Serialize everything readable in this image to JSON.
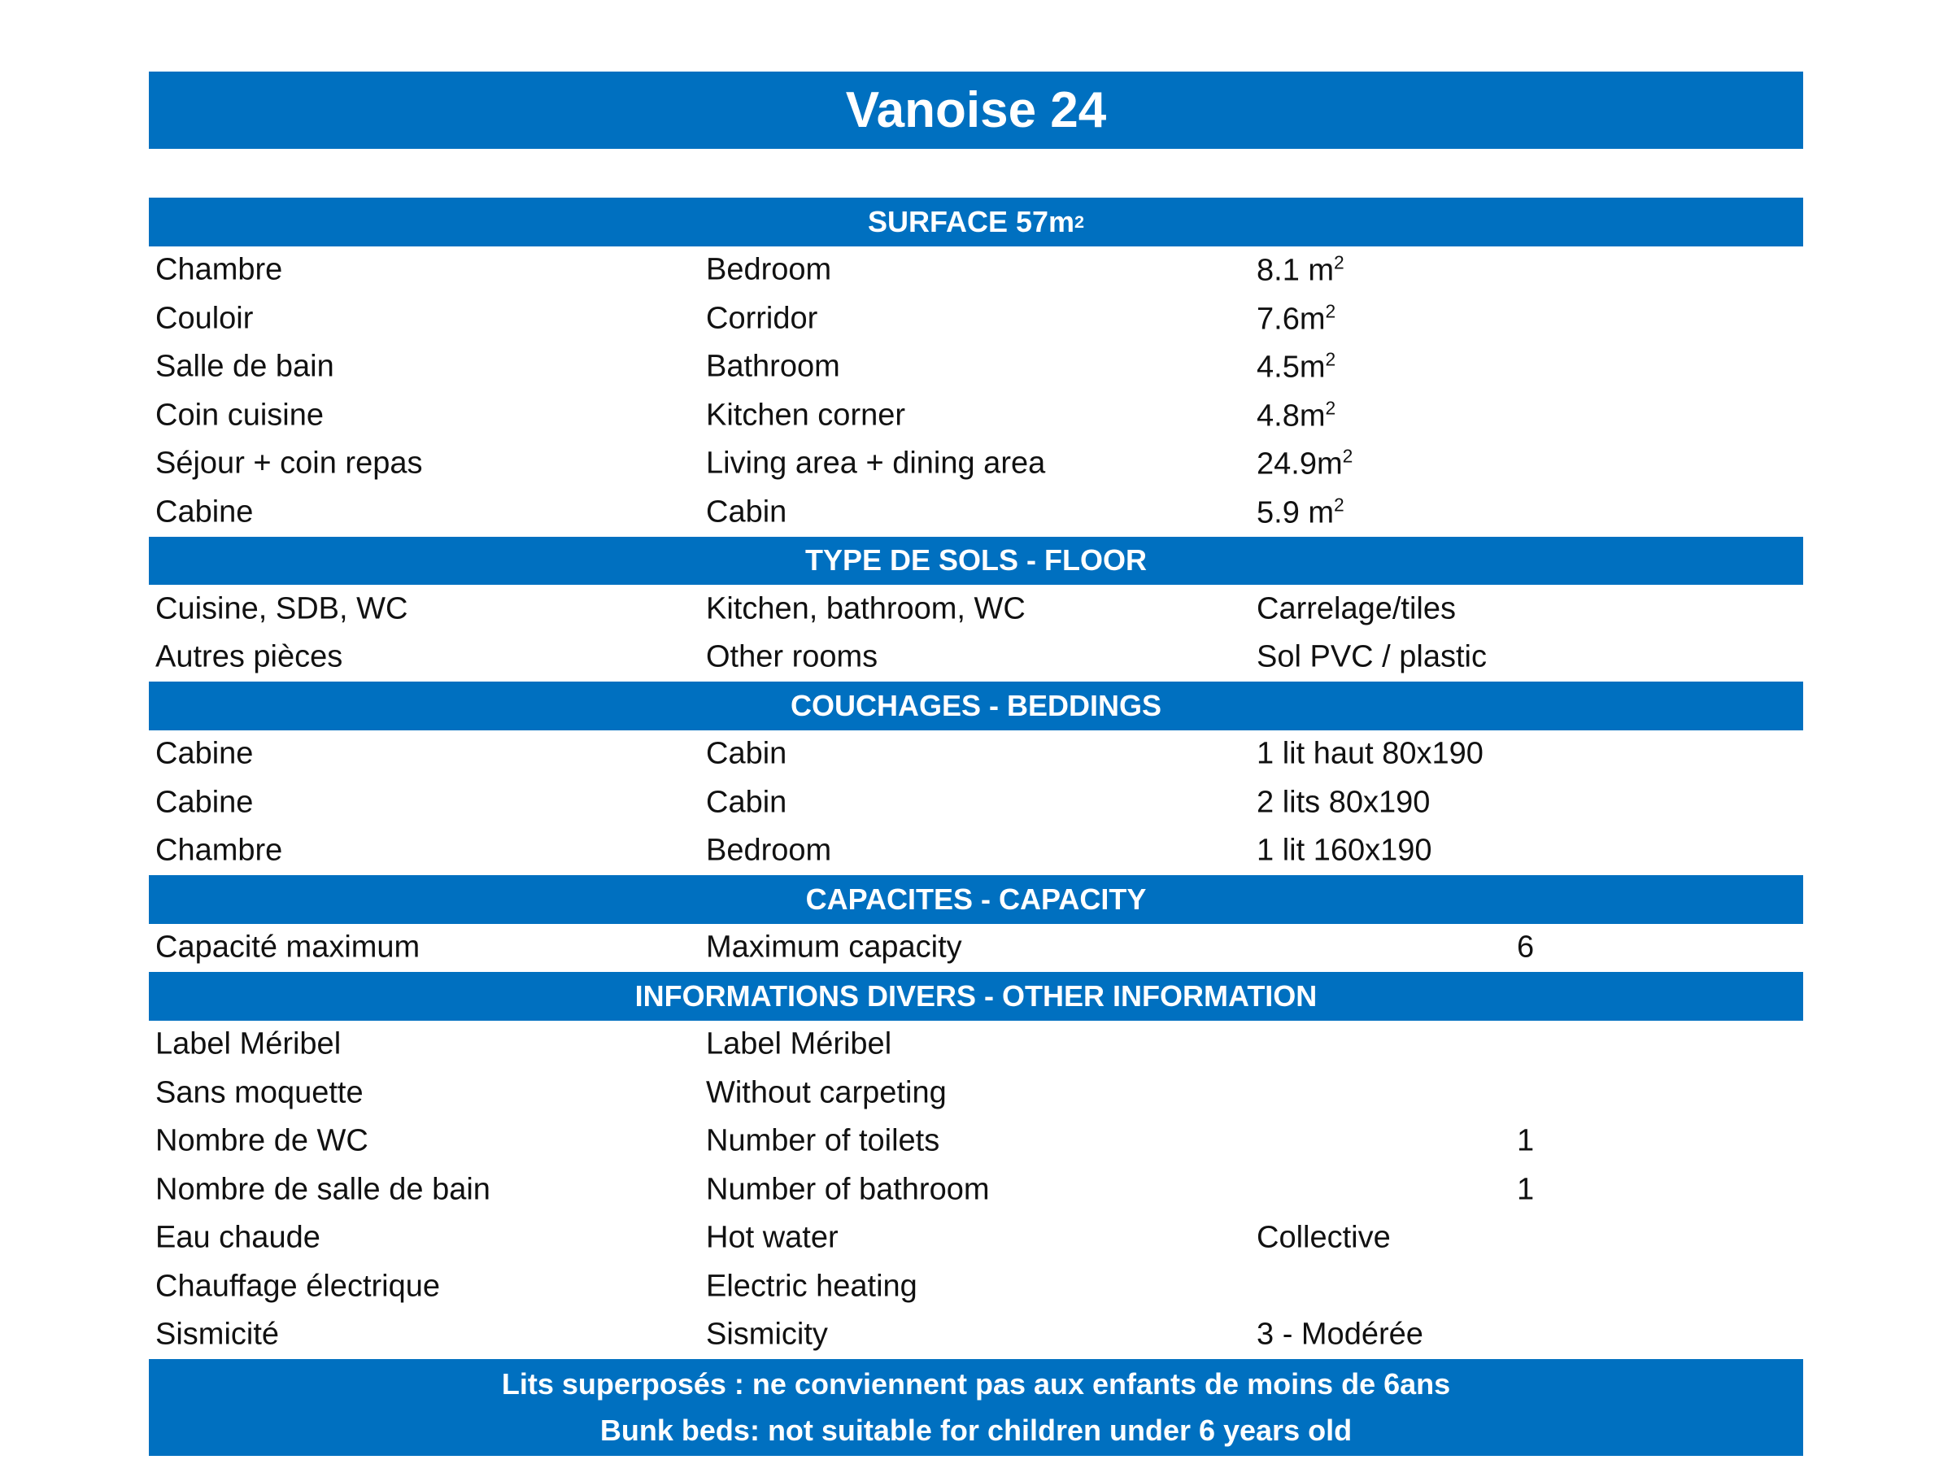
{
  "title": "Vanoise 24",
  "sections": {
    "surface": {
      "header": "SURFACE 57m",
      "header_sup": "2",
      "rows": [
        {
          "fr": "Chambre",
          "en": "Bedroom",
          "value": "8.1 m",
          "sup": "2"
        },
        {
          "fr": "Couloir",
          "en": "Corridor",
          "value": "7.6m",
          "sup": "2"
        },
        {
          "fr": "Salle de bain",
          "en": "Bathroom",
          "value": "4.5m",
          "sup": "2"
        },
        {
          "fr": "Coin cuisine",
          "en": "Kitchen corner",
          "value": "4.8m",
          "sup": "2"
        },
        {
          "fr": "Séjour + coin repas",
          "en": "Living area + dining area",
          "value": "24.9m",
          "sup": "2"
        },
        {
          "fr": "Cabine",
          "en": "Cabin",
          "value": "5.9 m",
          "sup": "2"
        }
      ]
    },
    "floor": {
      "header": "TYPE DE SOLS - FLOOR",
      "rows": [
        {
          "fr": "Cuisine, SDB, WC",
          "en": "Kitchen, bathroom, WC",
          "value": "Carrelage/tiles"
        },
        {
          "fr": "Autres pièces",
          "en": "Other rooms",
          "value": "Sol PVC / plastic"
        }
      ]
    },
    "beddings": {
      "header": "COUCHAGES - BEDDINGS",
      "rows": [
        {
          "fr": "Cabine",
          "en": "Cabin",
          "value": "1 lit haut 80x190"
        },
        {
          "fr": "Cabine",
          "en": "Cabin",
          "value": "2 lits 80x190"
        },
        {
          "fr": "Chambre",
          "en": "Bedroom",
          "value": "1 lit 160x190"
        }
      ]
    },
    "capacity": {
      "header": "CAPACITES - CAPACITY",
      "rows": [
        {
          "fr": "Capacité maximum",
          "en": "Maximum capacity",
          "number": "6"
        }
      ]
    },
    "other": {
      "header": "INFORMATIONS DIVERS - OTHER INFORMATION",
      "rows": [
        {
          "fr": "Label Méribel",
          "en": "Label Méribel"
        },
        {
          "fr": "Sans moquette",
          "en": "Without carpeting"
        },
        {
          "fr": "Nombre de WC",
          "en": "Number of toilets",
          "number": "1"
        },
        {
          "fr": "Nombre de salle de bain",
          "en": "Number of bathroom",
          "number": "1"
        },
        {
          "fr": "Eau chaude",
          "en": "Hot water",
          "value": "Collective"
        },
        {
          "fr": "Chauffage électrique",
          "en": "Electric heating"
        },
        {
          "fr": "Sismicité",
          "en": "Sismicity",
          "value": "3 - Modérée"
        }
      ]
    }
  },
  "footer": {
    "line1": "Lits superposés : ne conviennent pas aux enfants de moins de 6ans",
    "line2": "Bunk beds: not suitable for children under 6 years old"
  },
  "colors": {
    "accent": "#0070C0"
  }
}
